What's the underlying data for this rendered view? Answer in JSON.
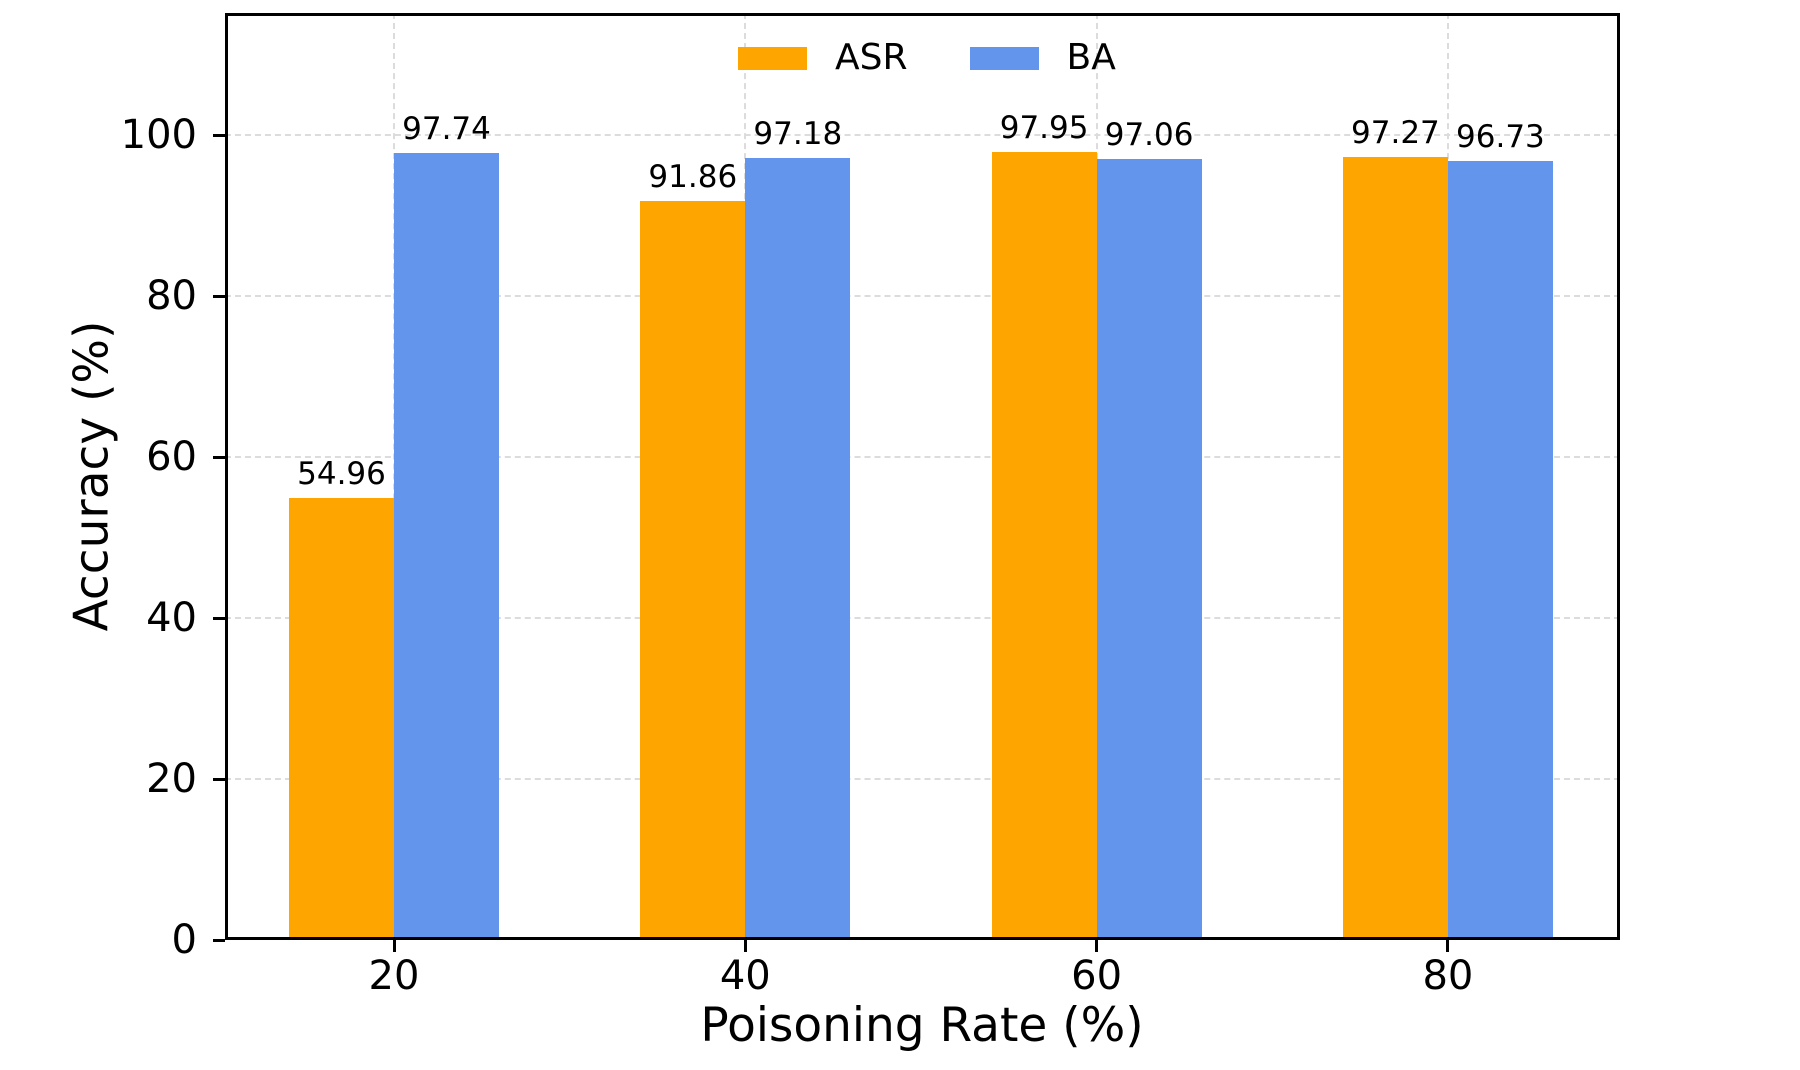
{
  "chart_data": {
    "type": "bar",
    "title": "",
    "categories": [
      "20",
      "40",
      "60",
      "80"
    ],
    "series": [
      {
        "name": "ASR",
        "color": "#FFA500",
        "values": [
          54.96,
          91.86,
          97.95,
          97.27
        ]
      },
      {
        "name": "BA",
        "color": "#6495ED",
        "values": [
          97.74,
          97.18,
          97.06,
          96.73
        ]
      }
    ],
    "value_labels": [
      [
        "54.96",
        "91.86",
        "97.95",
        "97.27"
      ],
      [
        "97.74",
        "97.18",
        "97.06",
        "96.73"
      ]
    ],
    "xlabel": "Poisoning Rate (%)",
    "ylabel": "Accuracy (%)",
    "yticks": [
      "0",
      "20",
      "40",
      "60",
      "80",
      "100"
    ],
    "ytick_values": [
      0,
      20,
      40,
      60,
      80,
      100
    ],
    "ylim": [
      0,
      115.2
    ],
    "grid": true,
    "grid_color": "#dcdcdc",
    "legend_position": "upper center",
    "legend_items": [
      {
        "label": "ASR",
        "color": "#FFA500"
      },
      {
        "label": "BA",
        "color": "#6495ED"
      }
    ]
  }
}
